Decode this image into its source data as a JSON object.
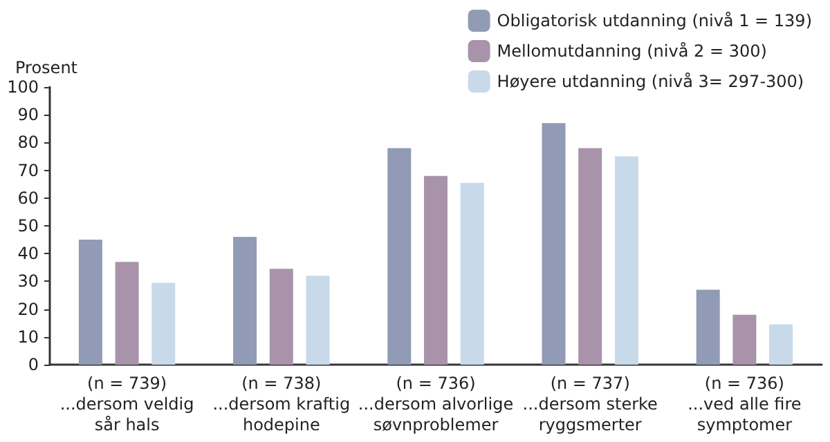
{
  "chart_data": {
    "type": "bar",
    "ylabel": "Prosent",
    "categories": [
      "(n = 739)\n...dersom veldig\nsår hals",
      "(n = 738)\n...dersom kraftig\nhodepine",
      "(n = 736)\n...dersom alvorlige\nsøvnproblemer",
      "(n = 737)\n...dersom sterke\nryggsmerter",
      "(n = 736)\n...ved alle fire\nsymptomer"
    ],
    "series": [
      {
        "name": "Obligatorisk utdanning (nivå 1 = 139)",
        "color": "#929bb5",
        "values": [
          45,
          46,
          78,
          87,
          27
        ]
      },
      {
        "name": "Mellomutdanning (nivå 2 = 300)",
        "color": "#a893ab",
        "values": [
          37,
          34.5,
          68,
          78,
          18
        ]
      },
      {
        "name": "Høyere utdanning (nivå 3= 297-300)",
        "color": "#c8d9ea",
        "values": [
          29.5,
          32,
          65.5,
          75,
          14.5
        ]
      }
    ],
    "ylim": [
      0,
      100
    ],
    "yticks": [
      0,
      10,
      20,
      30,
      40,
      50,
      60,
      70,
      80,
      90,
      100
    ],
    "grid": false,
    "legend": "top right"
  }
}
